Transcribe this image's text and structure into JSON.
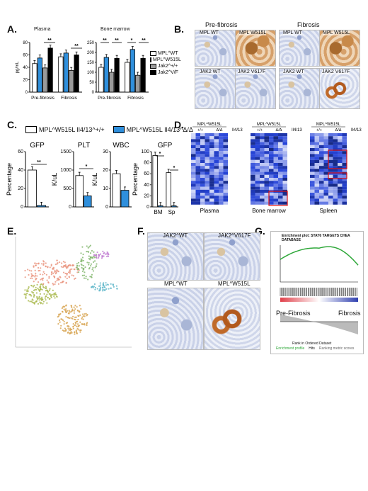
{
  "panels": {
    "A": "A.",
    "B": "B.",
    "C": "C.",
    "D": "D.",
    "E": "E.",
    "F": "F.",
    "G": "G."
  },
  "panelA": {
    "titles": [
      "Plasma",
      "Bone marrow"
    ],
    "ylabel": "pg/mL",
    "groups": [
      "Pre-fibrosis",
      "Fibrosis"
    ],
    "legend": [
      "MPL^WT",
      "MPL^W515L",
      "Jak2^+/+",
      "Jak2^V/F"
    ],
    "legend_colors": [
      "#ffffff",
      "#2f8fdc",
      "#9a9a9a",
      "#000000"
    ],
    "sig": [
      "**",
      "**",
      "**",
      "**",
      "*",
      "**"
    ]
  },
  "panelB": {
    "row1_title_left": "Pre-fibrosis",
    "row1_title_right": "Fibrosis",
    "labels_row1": [
      "MPL WT",
      "MPL W515L",
      "MPL WT",
      "MPL W515L"
    ],
    "labels_row2": [
      "JAK2 WT",
      "JAK2 V617F",
      "JAK2 WT",
      "JAK2 V617F"
    ]
  },
  "panelC": {
    "legend": [
      "MPL^W515L Il4/13^+/+",
      "MPL^W515L Il4/13^Δ/Δ"
    ],
    "legend_colors": [
      "#ffffff",
      "#2f8fdc"
    ],
    "sig": [
      "**",
      "*",
      "*",
      "*"
    ]
  },
  "panelD": {
    "headers": [
      "MPL^W515L",
      "MPL^W515L",
      "MPL^W515L"
    ],
    "group_labels": [
      "+/+",
      "Δ/Δ"
    ],
    "il_label": "Il4/13",
    "captions": [
      "Plasma",
      "Bone marrow",
      "Spleen"
    ]
  },
  "panelF": {
    "labels": [
      "JAK2^WT",
      "JAK2^V617F",
      "MPL^WT",
      "MPL^W515L"
    ]
  },
  "panelG": {
    "title": "Enrichment plot: STAT6 TARGETS CHEA DATABASE",
    "left_label": "Pre-Fibrosis",
    "right_label": "Fibrosis",
    "ylabel": "Enrichment score (ES)",
    "ylabel2": "Ranked list metric",
    "xlabel": "Rank in Ordered Dataset",
    "legend": [
      "Enrichment profile",
      "Hits",
      "Ranking metric scores"
    ]
  },
  "chart_data": [
    {
      "type": "bar",
      "title": "Plasma",
      "ylabel": "pg/mL",
      "categories": [
        "Pre-fibrosis",
        "Fibrosis"
      ],
      "ylim": [
        0,
        80
      ],
      "yticks": [
        0,
        20,
        40,
        60,
        80
      ],
      "series": [
        {
          "name": "MPL^WT",
          "values": [
            46,
            57
          ]
        },
        {
          "name": "MPL^W515L",
          "values": [
            55,
            63
          ]
        },
        {
          "name": "Jak2^+/+",
          "values": [
            39,
            35
          ]
        },
        {
          "name": "Jak2^V/F",
          "values": [
            71,
            60
          ]
        }
      ]
    },
    {
      "type": "bar",
      "title": "Bone marrow",
      "ylabel": "pg/mL",
      "categories": [
        "Pre-fibrosis",
        "Fibrosis"
      ],
      "ylim": [
        0,
        250
      ],
      "yticks": [
        0,
        50,
        100,
        150,
        200,
        250
      ],
      "series": [
        {
          "name": "MPL^WT",
          "values": [
            125,
            150
          ]
        },
        {
          "name": "MPL^W515L",
          "values": [
            175,
            215
          ]
        },
        {
          "name": "Jak2^+/+",
          "values": [
            100,
            85
          ]
        },
        {
          "name": "Jak2^V/F",
          "values": [
            170,
            170
          ]
        }
      ]
    },
    {
      "type": "bar",
      "title": "GFP",
      "ylabel": "Percentage",
      "categories": [
        ""
      ],
      "ylim": [
        0,
        60
      ],
      "yticks": [
        0,
        20,
        40,
        60
      ],
      "series": [
        {
          "name": "MPL^W515L Il4/13^+/+",
          "values": [
            40
          ]
        },
        {
          "name": "MPL^W515L Il4/13^Δ/Δ",
          "values": [
            1.5
          ]
        }
      ]
    },
    {
      "type": "bar",
      "title": "PLT",
      "ylabel": "K/uL",
      "categories": [
        ""
      ],
      "ylim": [
        0,
        1500
      ],
      "yticks": [
        0,
        500,
        1000,
        1500
      ],
      "series": [
        {
          "name": "MPL^W515L Il4/13^+/+",
          "values": [
            850
          ]
        },
        {
          "name": "MPL^W515L Il4/13^Δ/Δ",
          "values": [
            300
          ]
        }
      ]
    },
    {
      "type": "bar",
      "title": "WBC",
      "ylabel": "K/uL",
      "categories": [
        ""
      ],
      "ylim": [
        0,
        30
      ],
      "yticks": [
        0,
        10,
        20,
        30
      ],
      "series": [
        {
          "name": "MPL^W515L Il4/13^+/+",
          "values": [
            18
          ]
        },
        {
          "name": "MPL^W515L Il4/13^Δ/Δ",
          "values": [
            9
          ]
        }
      ]
    },
    {
      "type": "bar",
      "title": "GFP",
      "ylabel": "Percentage",
      "categories": [
        "BM",
        "Sp"
      ],
      "ylim": [
        0,
        100
      ],
      "yticks": [
        0,
        20,
        40,
        60,
        80,
        100
      ],
      "series": [
        {
          "name": "MPL^W515L Il4/13^+/+",
          "values": [
            93,
            62
          ]
        },
        {
          "name": "MPL^W515L Il4/13^Δ/Δ",
          "values": [
            2,
            2
          ]
        }
      ]
    }
  ]
}
